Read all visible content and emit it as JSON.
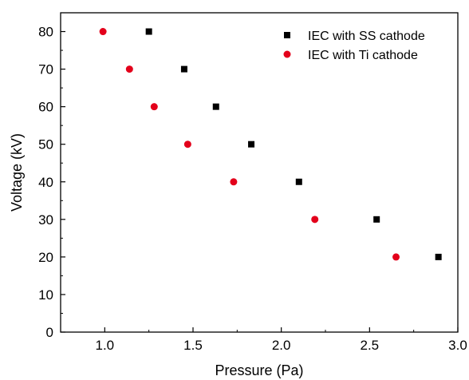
{
  "chart_data": {
    "type": "scatter",
    "xlabel": "Pressure (Pa)",
    "ylabel": "Voltage (kV)",
    "xlim": [
      0.75,
      3.0
    ],
    "ylim": [
      0,
      85
    ],
    "xticks": [
      1.0,
      1.5,
      2.0,
      2.5,
      3.0
    ],
    "xtick_labels": [
      "1.0",
      "1.5",
      "2.0",
      "2.5",
      "3.0"
    ],
    "yticks": [
      0,
      10,
      20,
      30,
      40,
      50,
      60,
      70,
      80
    ],
    "ytick_labels": [
      "0",
      "10",
      "20",
      "30",
      "40",
      "50",
      "60",
      "70",
      "80"
    ],
    "grid": false,
    "legend_position": "top-right",
    "series": [
      {
        "name": "IEC with SS cathode",
        "marker": "square",
        "color": "#000000",
        "x": [
          1.25,
          1.45,
          1.63,
          1.83,
          2.1,
          2.54,
          2.89
        ],
        "y": [
          80,
          70,
          60,
          50,
          40,
          30,
          20
        ]
      },
      {
        "name": "IEC with Ti cathode",
        "marker": "circle",
        "color": "#e3001b",
        "x": [
          0.99,
          1.14,
          1.28,
          1.47,
          1.73,
          2.19,
          2.65
        ],
        "y": [
          80,
          70,
          60,
          50,
          40,
          30,
          20
        ]
      }
    ]
  }
}
